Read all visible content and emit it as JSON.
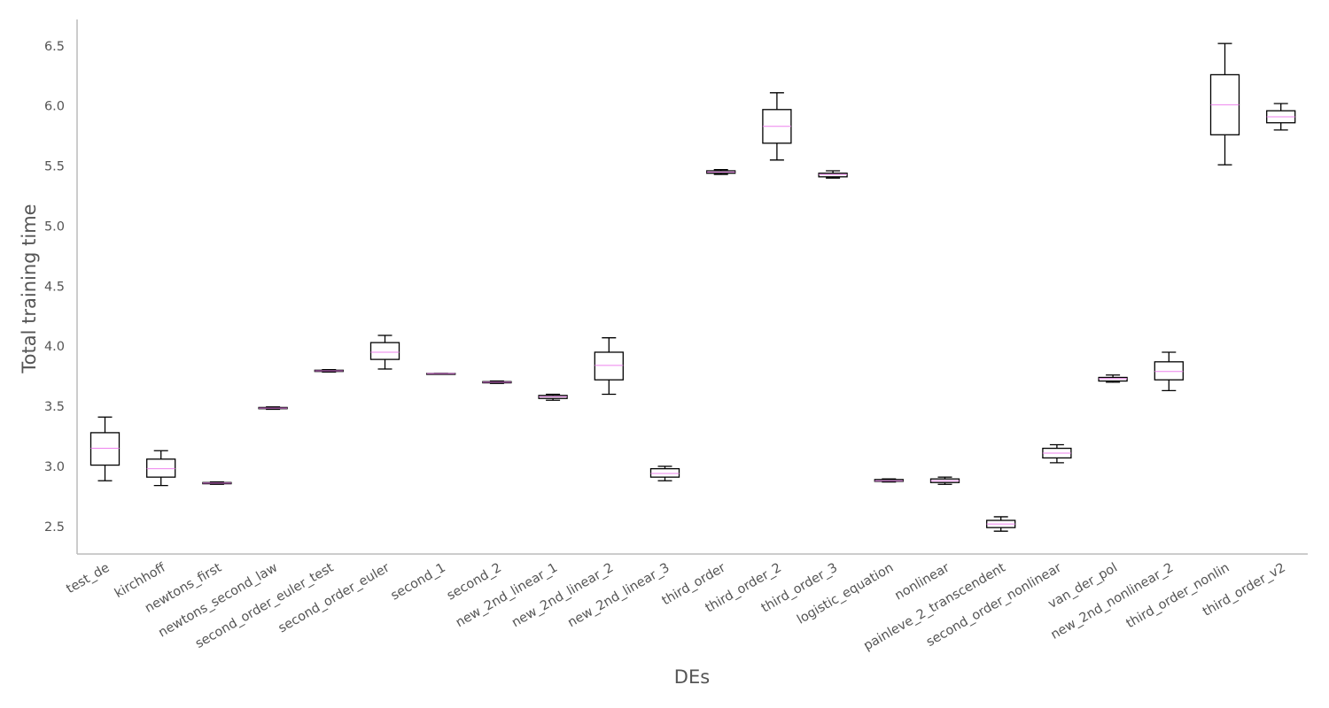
{
  "chart_data": {
    "type": "box",
    "xlabel": "DEs",
    "ylabel": "Total training time",
    "ylim": [
      2.27,
      6.72
    ],
    "yticks": [
      2.5,
      3.0,
      3.5,
      4.0,
      4.5,
      5.0,
      5.5,
      6.0,
      6.5
    ],
    "yticklabels": [
      "2.5",
      "3.0",
      "3.5",
      "4.0",
      "4.5",
      "5.0",
      "5.5",
      "6.0",
      "6.5"
    ],
    "grid": false,
    "colors": {
      "box": "#000000",
      "median": "#ee82ee",
      "axis": "#bbbbbb",
      "text": "#555555"
    },
    "categories": [
      "test_de",
      "kirchhoff",
      "newtons_first",
      "newtons_second_law",
      "second_order_euler_test",
      "second_order_euler",
      "second_1",
      "second_2",
      "new_2nd_linear_1",
      "new_2nd_linear_2",
      "new_2nd_linear_3",
      "third_order",
      "third_order_2",
      "third_order_3",
      "logistic_equation",
      "nonlinear",
      "painleve_2_transcendent",
      "second_order_nonlinear",
      "van_der_pol",
      "new_2nd_nonlinear_2",
      "third_order_nonlin",
      "third_order_v2"
    ],
    "boxes": [
      {
        "whislo": 2.88,
        "q1": 3.01,
        "med": 3.15,
        "q3": 3.28,
        "whishi": 3.41
      },
      {
        "whislo": 2.84,
        "q1": 2.91,
        "med": 2.98,
        "q3": 3.06,
        "whishi": 3.13
      },
      {
        "whislo": 2.85,
        "q1": 2.855,
        "med": 2.86,
        "q3": 2.865,
        "whishi": 2.87
      },
      {
        "whislo": 3.475,
        "q1": 3.48,
        "med": 3.485,
        "q3": 3.49,
        "whishi": 3.495
      },
      {
        "whislo": 3.785,
        "q1": 3.79,
        "med": 3.795,
        "q3": 3.8,
        "whishi": 3.805
      },
      {
        "whislo": 3.81,
        "q1": 3.89,
        "med": 3.95,
        "q3": 4.03,
        "whishi": 4.09
      },
      {
        "whislo": 3.77,
        "q1": 3.771,
        "med": 3.772,
        "q3": 3.773,
        "whishi": 3.774
      },
      {
        "whislo": 3.69,
        "q1": 3.695,
        "med": 3.7,
        "q3": 3.705,
        "whishi": 3.71
      },
      {
        "whislo": 3.55,
        "q1": 3.565,
        "med": 3.58,
        "q3": 3.59,
        "whishi": 3.6
      },
      {
        "whislo": 3.6,
        "q1": 3.72,
        "med": 3.84,
        "q3": 3.95,
        "whishi": 4.07
      },
      {
        "whislo": 2.88,
        "q1": 2.91,
        "med": 2.94,
        "q3": 2.98,
        "whishi": 3.0
      },
      {
        "whislo": 5.43,
        "q1": 5.44,
        "med": 5.45,
        "q3": 5.46,
        "whishi": 5.47
      },
      {
        "whislo": 5.55,
        "q1": 5.69,
        "med": 5.83,
        "q3": 5.97,
        "whishi": 6.11
      },
      {
        "whislo": 5.4,
        "q1": 5.41,
        "med": 5.43,
        "q3": 5.44,
        "whishi": 5.46
      },
      {
        "whislo": 2.87,
        "q1": 2.875,
        "med": 2.88,
        "q3": 2.89,
        "whishi": 2.895
      },
      {
        "whislo": 2.85,
        "q1": 2.865,
        "med": 2.88,
        "q3": 2.895,
        "whishi": 2.91
      },
      {
        "whislo": 2.46,
        "q1": 2.49,
        "med": 2.52,
        "q3": 2.55,
        "whishi": 2.58
      },
      {
        "whislo": 3.03,
        "q1": 3.07,
        "med": 3.11,
        "q3": 3.15,
        "whishi": 3.18
      },
      {
        "whislo": 3.7,
        "q1": 3.71,
        "med": 3.73,
        "q3": 3.74,
        "whishi": 3.76
      },
      {
        "whislo": 3.63,
        "q1": 3.72,
        "med": 3.79,
        "q3": 3.87,
        "whishi": 3.95
      },
      {
        "whislo": 5.51,
        "q1": 5.76,
        "med": 6.01,
        "q3": 6.26,
        "whishi": 6.52
      },
      {
        "whislo": 5.8,
        "q1": 5.86,
        "med": 5.91,
        "q3": 5.96,
        "whishi": 6.02
      }
    ]
  }
}
